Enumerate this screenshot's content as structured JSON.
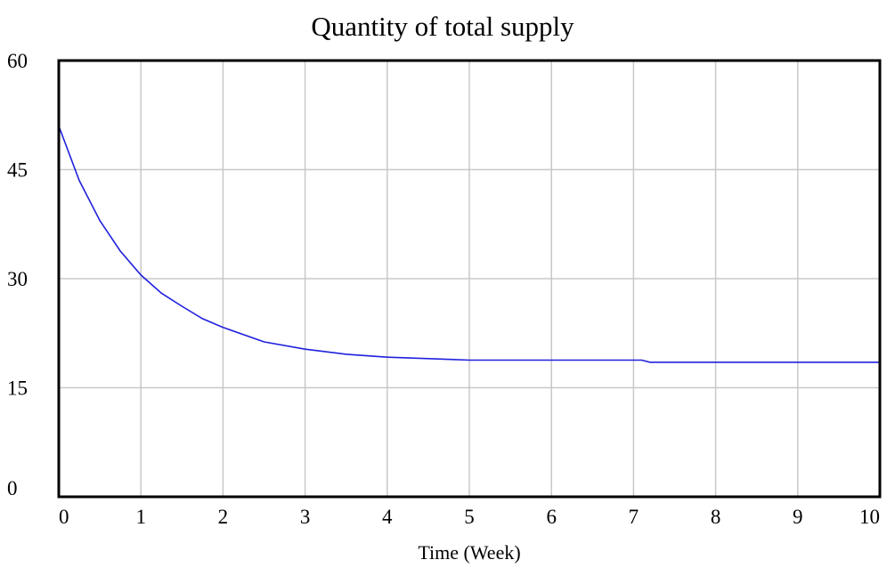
{
  "chart_data": {
    "type": "line",
    "title": "Quantity of total supply",
    "xlabel": "Time (Week)",
    "ylabel": "",
    "xlim": [
      0,
      10
    ],
    "ylim": [
      0,
      60
    ],
    "xticks": [
      0,
      1,
      2,
      3,
      4,
      5,
      6,
      7,
      8,
      9,
      10
    ],
    "yticks": [
      0,
      15,
      30,
      45,
      60
    ],
    "grid": true,
    "legend": "none",
    "series": [
      {
        "color": "#2020dd",
        "x": [
          0,
          0.25,
          0.5,
          0.75,
          1,
          1.25,
          1.5,
          1.75,
          2,
          2.5,
          3,
          3.5,
          4,
          4.5,
          5,
          6,
          7,
          7.1,
          7.2,
          8,
          9,
          10
        ],
        "y": [
          51.0,
          43.5,
          38.0,
          33.8,
          30.5,
          28.0,
          26.2,
          24.5,
          23.3,
          21.3,
          20.3,
          19.6,
          19.2,
          19.0,
          18.8,
          18.8,
          18.8,
          18.8,
          18.5,
          18.5,
          18.5,
          18.5
        ]
      }
    ]
  }
}
